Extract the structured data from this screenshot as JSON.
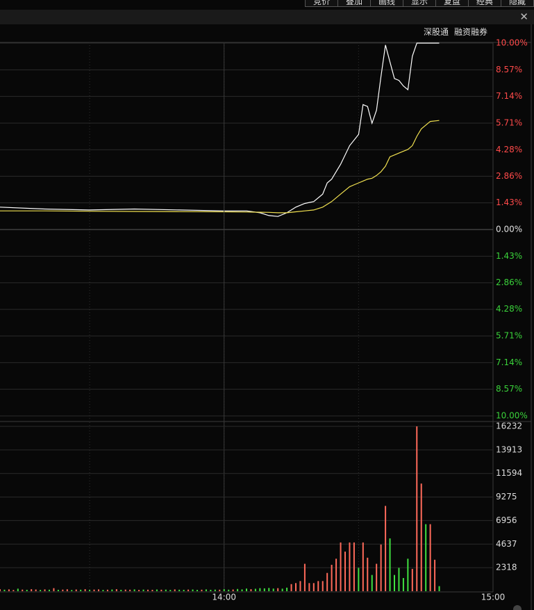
{
  "toolbar": [
    "竞价",
    "叠加",
    "画线",
    "显示",
    "复盘",
    "经典",
    "隐藏"
  ],
  "links": [
    "深股通",
    "融资融券"
  ],
  "chart_data": [
    {
      "type": "line",
      "x": [
        790,
        800,
        810,
        820,
        830,
        840,
        845,
        848,
        850,
        852,
        854,
        856,
        858,
        860,
        862,
        863,
        864,
        866,
        868,
        870,
        871,
        872,
        873,
        874,
        875,
        876,
        877,
        878,
        879,
        880,
        881,
        882,
        883,
        884,
        886,
        888
      ],
      "xlim": [
        790,
        900
      ],
      "xgrid": [
        810,
        840,
        870
      ],
      "ylim": [
        -10,
        10
      ],
      "yticks": [
        {
          "value": 10,
          "label": "10.00%"
        },
        {
          "value": 8.57,
          "label": "8.57%"
        },
        {
          "value": 7.14,
          "label": "7.14%"
        },
        {
          "value": 5.71,
          "label": "5.71%"
        },
        {
          "value": 4.28,
          "label": "4.28%"
        },
        {
          "value": 2.86,
          "label": "2.86%"
        },
        {
          "value": 1.43,
          "label": "1.43%"
        },
        {
          "value": 0,
          "label": "0.00%"
        },
        {
          "value": -1.43,
          "label": "1.43%"
        },
        {
          "value": -2.86,
          "label": "2.86%"
        },
        {
          "value": -4.28,
          "label": "4.28%"
        },
        {
          "value": -5.71,
          "label": "5.71%"
        },
        {
          "value": -7.14,
          "label": "7.14%"
        },
        {
          "value": -8.57,
          "label": "8.57%"
        },
        {
          "value": -10,
          "label": "10.00%"
        }
      ],
      "up_color": "#ff4a4a",
      "down_color": "#3ad23a",
      "zero_color": "#e0e0e0",
      "grid": true,
      "series": [
        {
          "color": "#ffffff",
          "values": [
            1.2,
            1.1,
            1.05,
            1.1,
            1.05,
            1.0,
            1.0,
            0.9,
            0.75,
            0.7,
            0.9,
            1.2,
            1.4,
            1.5,
            1.9,
            2.5,
            2.7,
            3.5,
            4.5,
            5.1,
            6.7,
            6.6,
            5.7,
            6.4,
            8.2,
            9.9,
            9.0,
            8.1,
            8.0,
            7.7,
            7.5,
            9.3,
            10.0,
            10.0,
            10.0,
            10.0
          ]
        },
        {
          "color": "#f0e050",
          "values": [
            1.0,
            1.0,
            0.98,
            0.97,
            0.96,
            0.95,
            0.94,
            0.93,
            0.92,
            0.9,
            0.9,
            0.95,
            1.0,
            1.05,
            1.2,
            1.35,
            1.5,
            1.9,
            2.3,
            2.5,
            2.6,
            2.7,
            2.75,
            2.9,
            3.1,
            3.4,
            3.9,
            4.0,
            4.1,
            4.2,
            4.3,
            4.5,
            5.0,
            5.4,
            5.8,
            5.85
          ]
        }
      ]
    },
    {
      "type": "volume",
      "x": [
        790,
        791,
        792,
        793,
        794,
        795,
        796,
        797,
        798,
        799,
        800,
        801,
        802,
        803,
        804,
        805,
        806,
        807,
        808,
        809,
        810,
        811,
        812,
        813,
        814,
        815,
        816,
        817,
        818,
        819,
        820,
        821,
        822,
        823,
        824,
        825,
        826,
        827,
        828,
        829,
        830,
        831,
        832,
        833,
        834,
        835,
        836,
        837,
        838,
        839,
        840,
        841,
        842,
        843,
        844,
        845,
        846,
        847,
        848,
        849,
        850,
        851,
        852,
        853,
        854,
        855,
        856,
        857,
        858,
        859,
        860,
        861,
        862,
        863,
        864,
        865,
        866,
        867,
        868,
        869,
        870,
        871,
        872,
        873,
        874,
        875,
        876,
        877,
        878,
        879,
        880,
        881,
        882,
        883,
        884,
        885,
        886,
        887,
        888
      ],
      "values": [
        200,
        150,
        180,
        120,
        250,
        160,
        140,
        200,
        170,
        130,
        180,
        150,
        300,
        140,
        160,
        190,
        120,
        170,
        150,
        200,
        140,
        160,
        180,
        130,
        150,
        170,
        200,
        140,
        160,
        150,
        180,
        130,
        160,
        150,
        140,
        170,
        150,
        160,
        130,
        180,
        150,
        140,
        160,
        170,
        130,
        150,
        180,
        140,
        160,
        150,
        200,
        150,
        170,
        220,
        180,
        260,
        200,
        240,
        300,
        280,
        320,
        260,
        300,
        250,
        350,
        700,
        800,
        1000,
        2700,
        800,
        800,
        1000,
        1000,
        1800,
        2600,
        3200,
        4800,
        3900,
        4800,
        4800,
        2300,
        4800,
        3300,
        1600,
        2700,
        4600,
        8400,
        5200,
        1600,
        2300,
        1300,
        3200,
        2200,
        16232,
        10600,
        6600,
        6600,
        3100,
        500
      ],
      "rising": [
        1,
        0,
        1,
        1,
        0,
        1,
        0,
        1,
        1,
        0,
        1,
        0,
        1,
        0,
        1,
        1,
        0,
        1,
        0,
        1,
        0,
        1,
        1,
        0,
        1,
        0,
        1,
        0,
        1,
        1,
        0,
        1,
        0,
        1,
        1,
        0,
        1,
        0,
        0,
        1,
        0,
        0,
        1,
        0,
        0,
        1,
        0,
        0,
        0,
        1,
        0,
        0,
        1,
        0,
        0,
        0,
        1,
        0,
        0,
        0,
        0,
        0,
        1,
        0,
        0,
        1,
        1,
        1,
        1,
        1,
        1,
        1,
        1,
        1,
        1,
        1,
        1,
        1,
        1,
        1,
        0,
        1,
        1,
        0,
        1,
        1,
        1,
        0,
        0,
        0,
        0,
        0,
        1,
        1,
        1,
        0,
        1,
        1,
        0
      ],
      "up_color": "#ff6a5a",
      "down_color": "#40e040",
      "xlim": [
        790,
        900
      ],
      "xgrid": [
        810,
        840,
        870
      ],
      "xticks": [
        {
          "value": 840,
          "label": "14:00"
        },
        {
          "value": 900,
          "label": "15:00"
        }
      ],
      "ylim": [
        0,
        16232
      ],
      "yticks": [
        2318,
        4637,
        6956,
        9275,
        11594,
        13913,
        16232
      ],
      "grid": true
    }
  ]
}
